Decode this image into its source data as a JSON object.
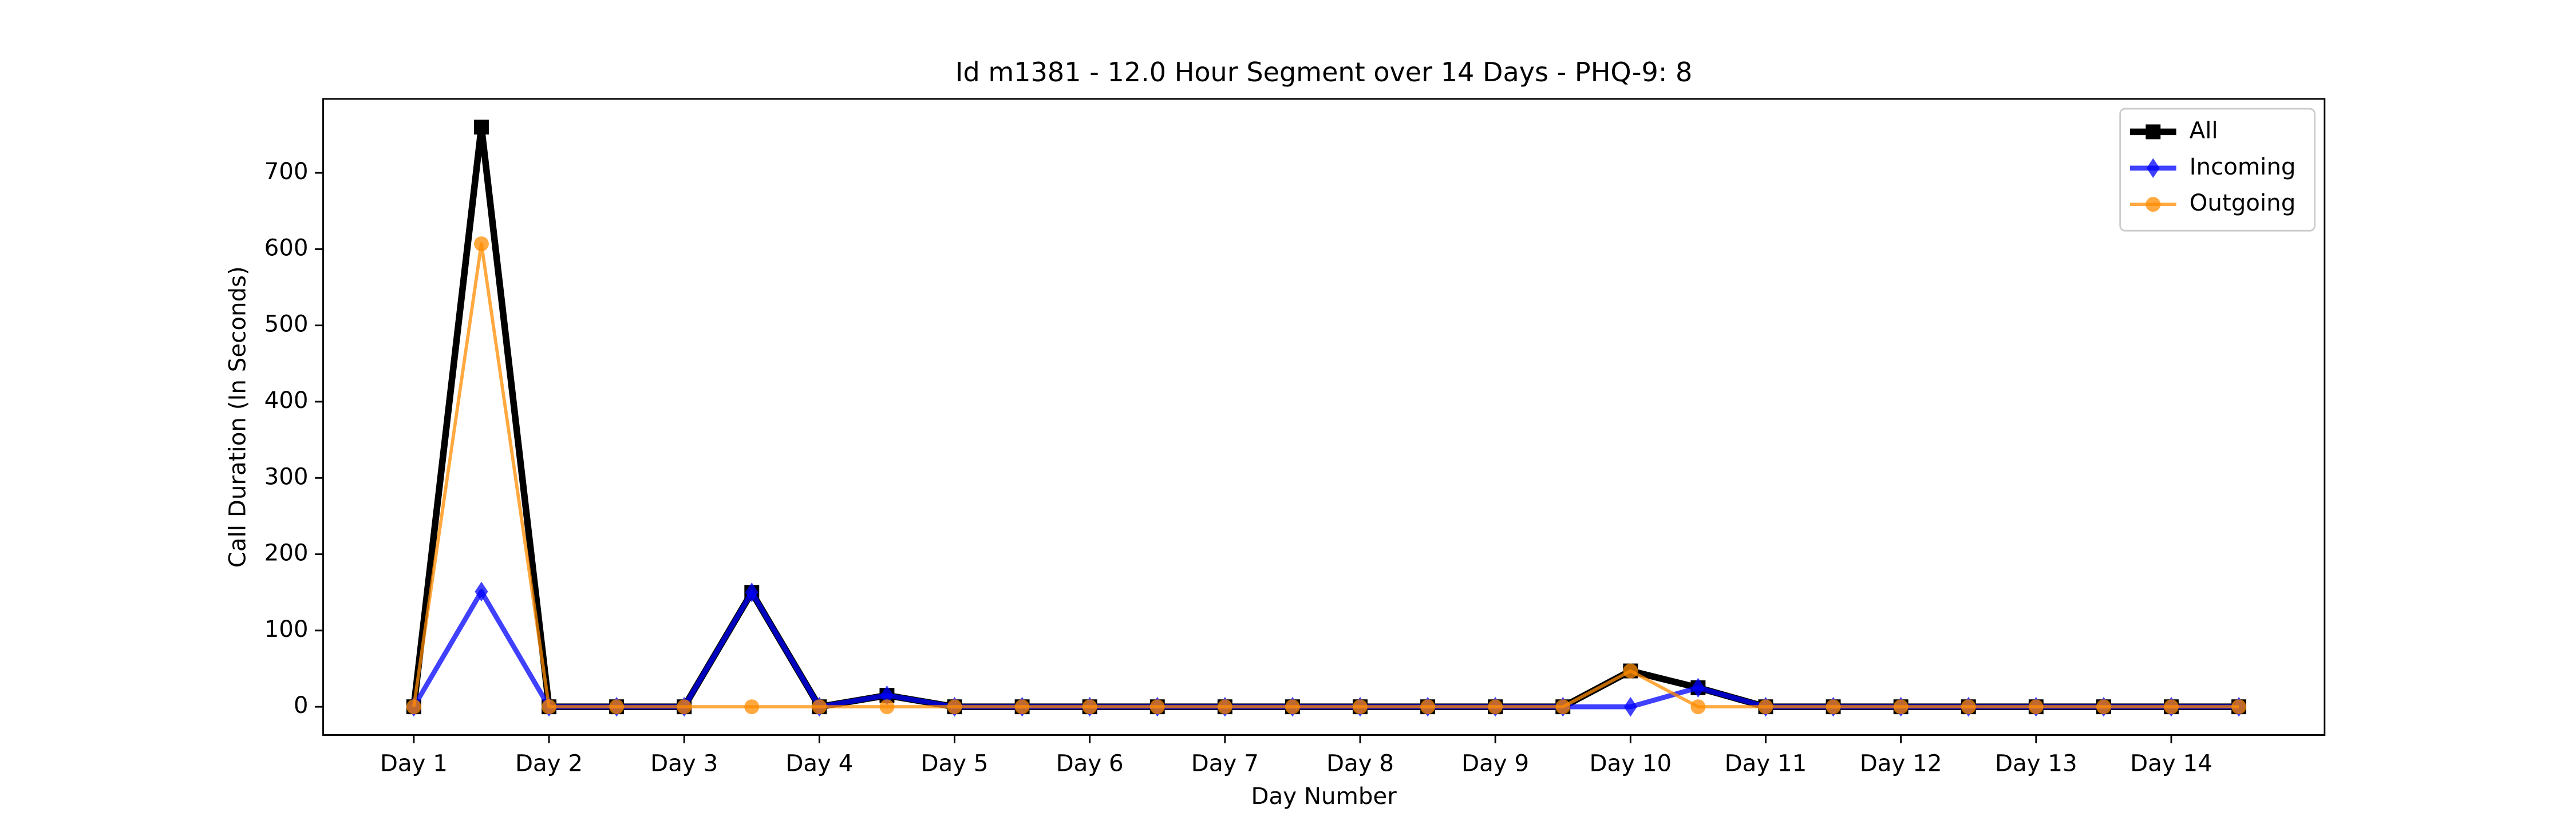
{
  "chart_data": {
    "type": "line",
    "title": "Id m1381 - 12.0 Hour Segment over 14 Days - PHQ-9: 8",
    "x_label": "Day Number",
    "y_label": "Call Duration (In Seconds)",
    "categories": [
      "Day 1",
      null,
      "Day 2",
      null,
      "Day 3",
      null,
      "Day 4",
      null,
      "Day 5",
      null,
      "Day 6",
      null,
      "Day 7",
      null,
      "Day 8",
      null,
      "Day 9",
      null,
      "Day 10",
      null,
      "Day 11",
      null,
      "Day 12",
      null,
      "Day 13",
      null,
      "Day 14",
      null
    ],
    "series": [
      {
        "name": "All",
        "color": "#000000",
        "marker": "square",
        "values": [
          0,
          760,
          0,
          0,
          0,
          150,
          0,
          15,
          0,
          0,
          0,
          0,
          0,
          0,
          0,
          0,
          0,
          0,
          47,
          25,
          0,
          0,
          0,
          0,
          0,
          0,
          0,
          0
        ]
      },
      {
        "name": "Incoming",
        "color": "#0000ff",
        "marker": "diamond",
        "values": [
          0,
          151,
          0,
          0,
          0,
          150,
          0,
          15,
          0,
          0,
          0,
          0,
          0,
          0,
          0,
          0,
          0,
          0,
          0,
          25,
          0,
          0,
          0,
          0,
          0,
          0,
          0,
          0
        ]
      },
      {
        "name": "Outgoing",
        "color": "#ff8c00",
        "marker": "circle",
        "values": [
          0,
          607,
          0,
          0,
          0,
          0,
          0,
          0,
          0,
          0,
          0,
          0,
          0,
          0,
          0,
          0,
          0,
          0,
          47,
          0,
          0,
          0,
          0,
          0,
          0,
          0,
          0,
          0
        ]
      }
    ],
    "ylim": [
      -37,
      797
    ],
    "yticks": [
      0,
      100,
      200,
      300,
      400,
      500,
      600,
      700
    ],
    "legend": "upper right"
  }
}
